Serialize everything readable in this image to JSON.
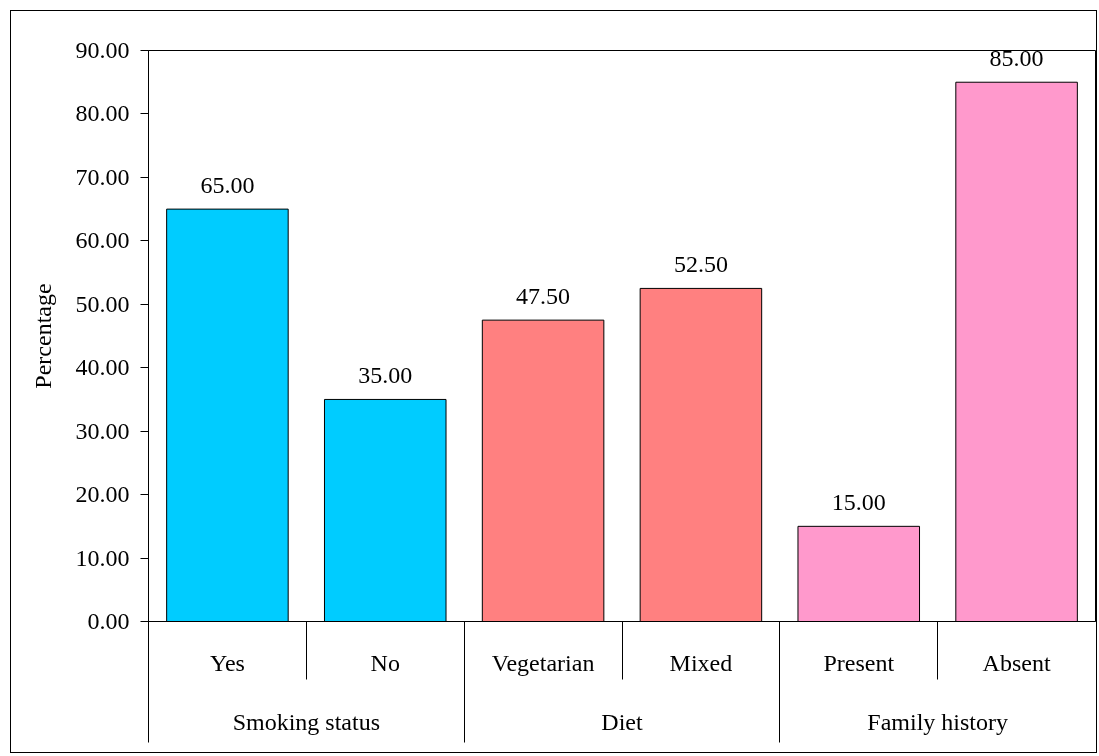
{
  "chart_data": {
    "type": "bar",
    "ylabel": "Percentage",
    "categories": [
      "Yes",
      "No",
      "Vegetarian",
      "Mixed",
      "Present",
      "Absent"
    ],
    "series": [
      {
        "color": "#00ccff",
        "values": [
          65,
          35,
          null,
          null,
          null,
          null
        ],
        "value_labels": [
          "65.00",
          "35.00",
          null,
          null,
          null,
          null
        ]
      },
      {
        "color": "#ff8080",
        "values": [
          null,
          null,
          47.5,
          52.5,
          null,
          null
        ],
        "value_labels": [
          null,
          null,
          "47.50",
          "52.50",
          null,
          null
        ]
      },
      {
        "color": "#ff99cc",
        "values": [
          null,
          null,
          null,
          null,
          15,
          85
        ],
        "value_labels": [
          null,
          null,
          null,
          null,
          "15.00",
          "85.00"
        ]
      }
    ],
    "annotations": [
      "Smoking status",
      "Diet",
      "Family history"
    ],
    "stacked": true,
    "ylim": [
      0,
      90
    ],
    "yticks": [
      {
        "value": 0,
        "label": "0.00"
      },
      {
        "value": 10,
        "label": "10.00"
      },
      {
        "value": 20,
        "label": "20.00"
      },
      {
        "value": 30,
        "label": "30.00"
      },
      {
        "value": 40,
        "label": "40.00"
      },
      {
        "value": 50,
        "label": "50.00"
      },
      {
        "value": 60,
        "label": "60.00"
      },
      {
        "value": 70,
        "label": "70.00"
      },
      {
        "value": 80,
        "label": "80.00"
      },
      {
        "value": 90,
        "label": "90.00"
      }
    ],
    "grid": false
  }
}
